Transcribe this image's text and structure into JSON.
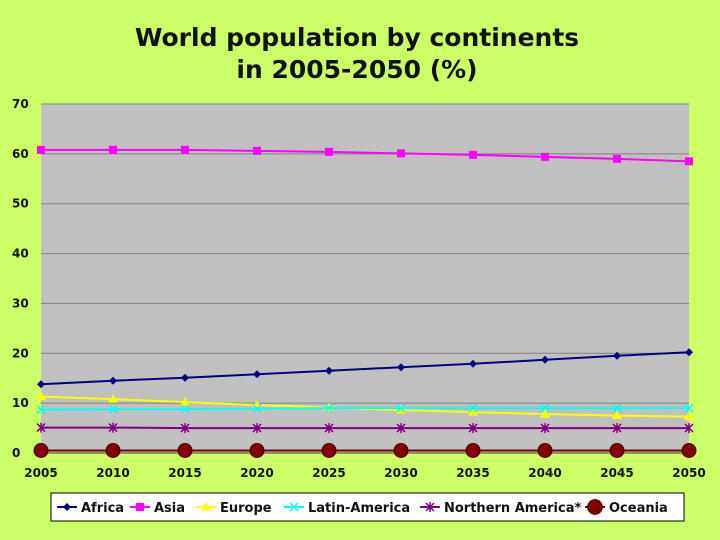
{
  "chart_data": {
    "type": "line",
    "title_line1": "World population by continents",
    "title_line2": "in 2005-2050 (%)",
    "x": [
      "2005",
      "2010",
      "2015",
      "2020",
      "2025",
      "2030",
      "2035",
      "2040",
      "2045",
      "2050"
    ],
    "yticks": [
      "0",
      "10",
      "20",
      "30",
      "40",
      "50",
      "60",
      "70"
    ],
    "ylim": [
      0,
      70
    ],
    "grid": true,
    "legend_position": "bottom",
    "series": [
      {
        "name": "Africa",
        "color": "#000080",
        "marker": "diamond",
        "values": [
          13.8,
          14.5,
          15.1,
          15.8,
          16.5,
          17.2,
          17.9,
          18.7,
          19.5,
          20.2
        ]
      },
      {
        "name": "Asia",
        "color": "#FF00FF",
        "marker": "square",
        "values": [
          60.8,
          60.8,
          60.8,
          60.6,
          60.4,
          60.1,
          59.8,
          59.4,
          59.0,
          58.5
        ]
      },
      {
        "name": "Europe",
        "color": "#FFFF00",
        "marker": "triangle",
        "values": [
          11.3,
          10.8,
          10.2,
          9.6,
          9.1,
          8.6,
          8.2,
          7.8,
          7.5,
          7.3
        ]
      },
      {
        "name": "Latin-America",
        "color": "#00FFFF",
        "marker": "x",
        "values": [
          8.7,
          8.8,
          8.8,
          8.9,
          9.0,
          9.0,
          9.0,
          9.0,
          9.0,
          9.0
        ]
      },
      {
        "name": "Northern America*",
        "color": "#800080",
        "marker": "star",
        "values": [
          5.1,
          5.1,
          5.0,
          5.0,
          5.0,
          5.0,
          5.0,
          5.0,
          5.0,
          5.0
        ]
      },
      {
        "name": "Oceania",
        "color": "#800000",
        "marker": "circle",
        "values": [
          0.5,
          0.5,
          0.5,
          0.5,
          0.5,
          0.5,
          0.5,
          0.5,
          0.5,
          0.5
        ]
      }
    ]
  }
}
